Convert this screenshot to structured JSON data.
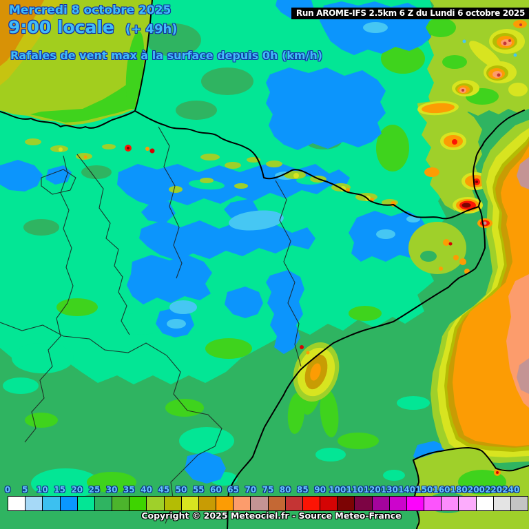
{
  "header": {
    "date": "Mercredi 8 octobre 2025",
    "time": "9:00 locale",
    "forecast_offset": "(+ 49h)",
    "subtitle": "Rafales de vent max à la surface depuis 0h (km/h)",
    "text_color": "#41bdf8",
    "outline_color": "#1330a8"
  },
  "run_banner": {
    "text": "Run AROME-IFS 2.5km 6 Z du Lundi 6 octobre 2025",
    "background": "#000000",
    "color": "#ffffff"
  },
  "legend": {
    "unit": "km/h",
    "tick_color": "#63c5ff",
    "stops": [
      {
        "label": "0",
        "color": "#ffffff"
      },
      {
        "label": "5",
        "color": "#a6d9f7"
      },
      {
        "label": "10",
        "color": "#3cc0f0"
      },
      {
        "label": "15",
        "color": "#0a97ff"
      },
      {
        "label": "20",
        "color": "#03e695"
      },
      {
        "label": "25",
        "color": "#2fb461"
      },
      {
        "label": "30",
        "color": "#4cb42c"
      },
      {
        "label": "35",
        "color": "#3ed400"
      },
      {
        "label": "40",
        "color": "#9fd02a"
      },
      {
        "label": "45",
        "color": "#b4bc04"
      },
      {
        "label": "50",
        "color": "#d8e420"
      },
      {
        "label": "55",
        "color": "#c89c04"
      },
      {
        "label": "60",
        "color": "#fc9c04"
      },
      {
        "label": "65",
        "color": "#fc9c6c"
      },
      {
        "label": "70",
        "color": "#c49494"
      },
      {
        "label": "75",
        "color": "#c46834"
      },
      {
        "label": "80",
        "color": "#c43434"
      },
      {
        "label": "85",
        "color": "#fc1404"
      },
      {
        "label": "90",
        "color": "#d40404"
      },
      {
        "label": "100",
        "color": "#7c0404"
      },
      {
        "label": "110",
        "color": "#7c0444"
      },
      {
        "label": "120",
        "color": "#a4049c"
      },
      {
        "label": "130",
        "color": "#cc04cc"
      },
      {
        "label": "140",
        "color": "#fc04fc"
      },
      {
        "label": "150",
        "color": "#fc54fc"
      },
      {
        "label": "160",
        "color": "#fc8cfc"
      },
      {
        "label": "180",
        "color": "#fcacfc"
      },
      {
        "label": "200",
        "color": "#ffffff"
      },
      {
        "label": "220",
        "color": "#e4e4e4"
      },
      {
        "label": "240",
        "color": "#c4c4c4"
      }
    ]
  },
  "footer": {
    "copyright": "Copyright © 2025 Meteociel.fr - Source Meteo-France"
  }
}
